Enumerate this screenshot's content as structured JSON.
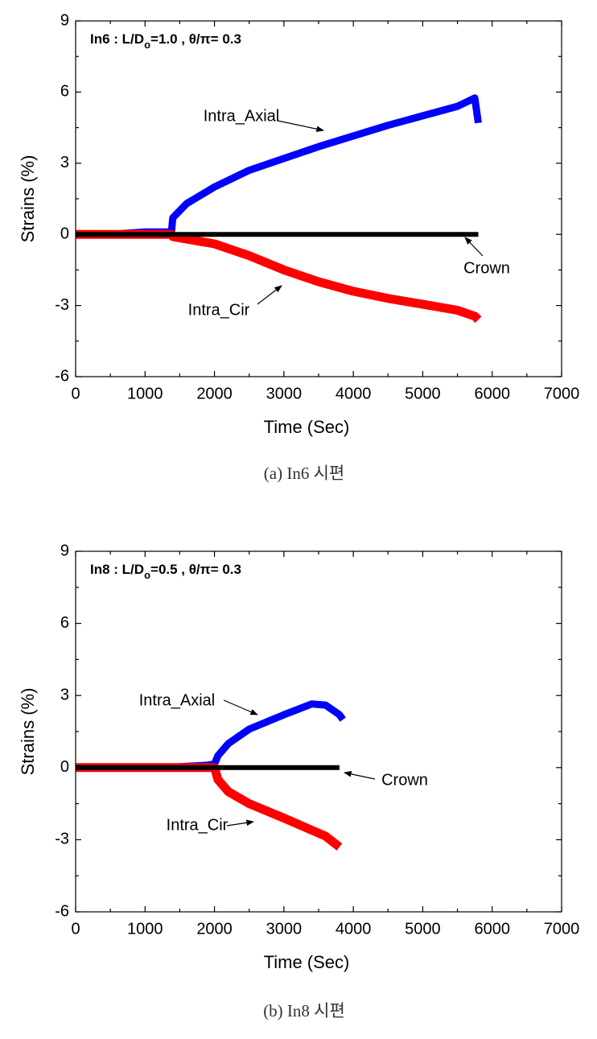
{
  "chart_data": [
    {
      "type": "line",
      "caption": "(a) In6 시편",
      "annotation": [
        "In6 : L/D",
        "o",
        "=1.0 , θ/π= 0.3"
      ],
      "x_label": "Time (Sec)",
      "y_label": "Strains (%)",
      "xlim": [
        0,
        7000
      ],
      "ylim": [
        -6,
        9
      ],
      "xticks": [
        0,
        1000,
        2000,
        3000,
        4000,
        5000,
        6000,
        7000
      ],
      "yticks": [
        -6,
        -3,
        0,
        3,
        6,
        9
      ],
      "x": [
        0,
        500,
        1000,
        1300,
        1380,
        1400,
        1600,
        2000,
        2500,
        3000,
        3500,
        4000,
        4500,
        5000,
        5500,
        5750,
        5800
      ],
      "series": [
        {
          "name": "Intra_Axial",
          "color": "#0000ff",
          "values": [
            0,
            0,
            0.1,
            0.1,
            0.1,
            0.7,
            1.3,
            2.0,
            2.7,
            3.2,
            3.7,
            4.15,
            4.6,
            5.0,
            5.4,
            5.75,
            4.7
          ]
        },
        {
          "name": "Intra_Cir",
          "color": "#ff0000",
          "values": [
            0,
            0,
            0,
            0,
            0,
            -0.1,
            -0.2,
            -0.4,
            -0.9,
            -1.5,
            -2.0,
            -2.4,
            -2.7,
            -2.95,
            -3.2,
            -3.45,
            -3.6
          ]
        },
        {
          "name": "Crown",
          "color": "#000000",
          "values": [
            0,
            0,
            0,
            0,
            0,
            0,
            0,
            0,
            0,
            0,
            0,
            0,
            0,
            0,
            0,
            0,
            0
          ]
        }
      ]
    },
    {
      "type": "line",
      "caption": "(b) In8 시편",
      "annotation": [
        "In8 : L/D",
        "o",
        "=0.5 , θ/π= 0.3"
      ],
      "x_label": "Time (Sec)",
      "y_label": "Strains (%)",
      "xlim": [
        0,
        7000
      ],
      "ylim": [
        -6,
        9
      ],
      "xticks": [
        0,
        1000,
        2000,
        3000,
        4000,
        5000,
        6000,
        7000
      ],
      "yticks": [
        -6,
        -3,
        0,
        3,
        6,
        9
      ],
      "x": [
        0,
        500,
        1000,
        1300,
        1600,
        1900,
        2000,
        2050,
        2200,
        2500,
        3000,
        3400,
        3600,
        3800,
        3850
      ],
      "series": [
        {
          "name": "Intra_Axial",
          "color": "#0000ff",
          "values": [
            0,
            0,
            0,
            0,
            0.05,
            0.1,
            0.15,
            0.5,
            1.0,
            1.6,
            2.2,
            2.65,
            2.6,
            2.2,
            2.0
          ]
        },
        {
          "name": "Intra_Cir",
          "color": "#ff0000",
          "values": [
            0,
            0,
            0,
            0,
            0,
            0,
            0,
            -0.5,
            -1.0,
            -1.5,
            -2.1,
            -2.6,
            -2.85,
            -3.3,
            null
          ]
        },
        {
          "name": "Crown",
          "color": "#000000",
          "values": [
            0,
            0,
            0,
            0,
            0,
            0,
            0,
            0,
            0,
            0,
            0,
            0,
            0,
            0,
            null
          ]
        }
      ]
    }
  ]
}
